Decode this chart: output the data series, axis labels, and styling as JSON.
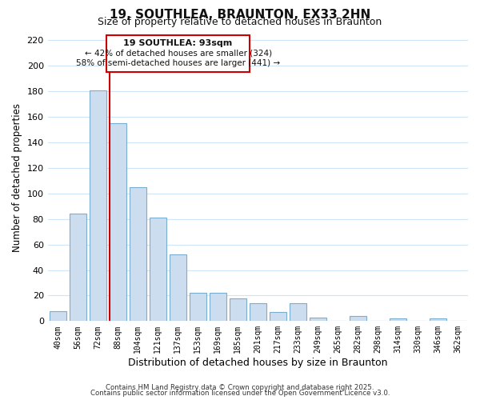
{
  "title": "19, SOUTHLEA, BRAUNTON, EX33 2HN",
  "subtitle": "Size of property relative to detached houses in Braunton",
  "xlabel": "Distribution of detached houses by size in Braunton",
  "ylabel": "Number of detached properties",
  "bar_color": "#ccddf0",
  "bar_edge_color": "#7aadce",
  "categories": [
    "40sqm",
    "56sqm",
    "72sqm",
    "88sqm",
    "104sqm",
    "121sqm",
    "137sqm",
    "153sqm",
    "169sqm",
    "185sqm",
    "201sqm",
    "217sqm",
    "233sqm",
    "249sqm",
    "265sqm",
    "282sqm",
    "298sqm",
    "314sqm",
    "330sqm",
    "346sqm",
    "362sqm"
  ],
  "values": [
    8,
    84,
    181,
    155,
    105,
    81,
    52,
    22,
    22,
    18,
    14,
    7,
    14,
    3,
    0,
    4,
    0,
    2,
    0,
    2,
    0
  ],
  "ylim": [
    0,
    225
  ],
  "yticks": [
    0,
    20,
    40,
    60,
    80,
    100,
    120,
    140,
    160,
    180,
    200,
    220
  ],
  "vline_index": 3,
  "vline_color": "#cc0000",
  "annotation_title": "19 SOUTHLEA: 93sqm",
  "annotation_line1": "← 42% of detached houses are smaller (324)",
  "annotation_line2": "58% of semi-detached houses are larger (441) →",
  "annotation_box_color": "#ffffff",
  "annotation_box_edge": "#cc0000",
  "footer1": "Contains HM Land Registry data © Crown copyright and database right 2025.",
  "footer2": "Contains public sector information licensed under the Open Government Licence v3.0.",
  "background_color": "#ffffff",
  "grid_color": "#d0e4f7"
}
